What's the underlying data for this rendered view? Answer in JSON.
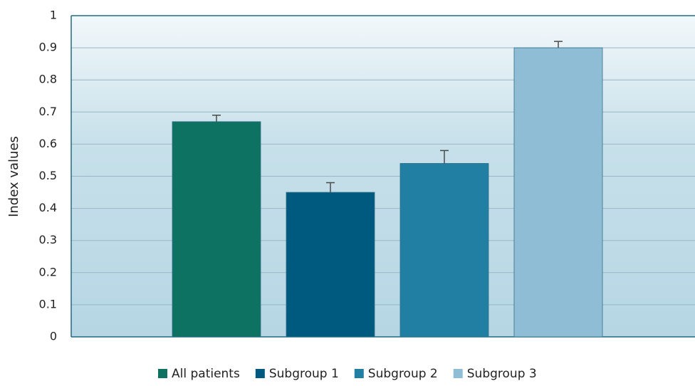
{
  "chart_data": {
    "type": "bar",
    "y_label": "Index values",
    "series": [
      {
        "name": "All patients",
        "color": "#0e7263",
        "values": [
          0.67
        ],
        "errors": [
          0.02
        ]
      },
      {
        "name": "Subgroup 1",
        "color": "#005a80",
        "values": [
          0.45
        ],
        "errors": [
          0.03
        ]
      },
      {
        "name": "Subgroup 2",
        "color": "#217fa3",
        "values": [
          0.54
        ],
        "errors": [
          0.04
        ]
      },
      {
        "name": "Subgroup 3",
        "color": "#8fbdd6",
        "values": [
          0.9
        ],
        "errors": [
          0.02
        ]
      }
    ],
    "ylim": [
      0,
      1
    ],
    "yticks": [
      0,
      0.1,
      0.2,
      0.3,
      0.4,
      0.5,
      0.6,
      0.7,
      0.8,
      0.9,
      1
    ],
    "grid": true,
    "legend": "bottom"
  }
}
